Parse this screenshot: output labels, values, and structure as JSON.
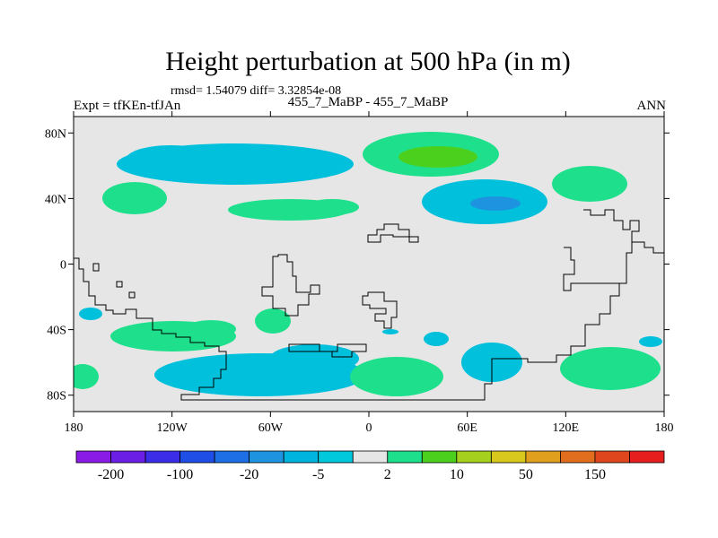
{
  "title": "Height perturbation at 500 hPa (in m)",
  "stats": "rmsd= 1.54079 diff= 3.32854e-08",
  "left_subtitle": "Expt = tfKEn-tfJAn",
  "center_subtitle": "455_7_MaBP - 455_7_MaBP",
  "right_subtitle": "ANN",
  "lat_ticks": [
    "80N",
    "40N",
    "0",
    "40S",
    "80S"
  ],
  "lon_ticks": [
    "180",
    "120W",
    "60W",
    "0",
    "60E",
    "120E",
    "180"
  ],
  "colorbar": {
    "colors": [
      "#8a1ae6",
      "#6a1ee6",
      "#3c2ee8",
      "#1e4ee6",
      "#1e6ee6",
      "#1e94e0",
      "#00b4e0",
      "#00c8dc",
      "#e6e6e6",
      "#1ee08c",
      "#4cd01e",
      "#a6d01e",
      "#d8c81e",
      "#e0a01e",
      "#e06e1e",
      "#e0461e",
      "#e61e1e"
    ],
    "labels": [
      "-200",
      "-100",
      "-20",
      "-5",
      "2",
      "10",
      "50",
      "150"
    ]
  },
  "colors": {
    "background": "#e6e6e6",
    "cyan": "#00c0dc",
    "blue": "#1e94e0",
    "green": "#1ee08c",
    "bright_green": "#4cd01e"
  }
}
